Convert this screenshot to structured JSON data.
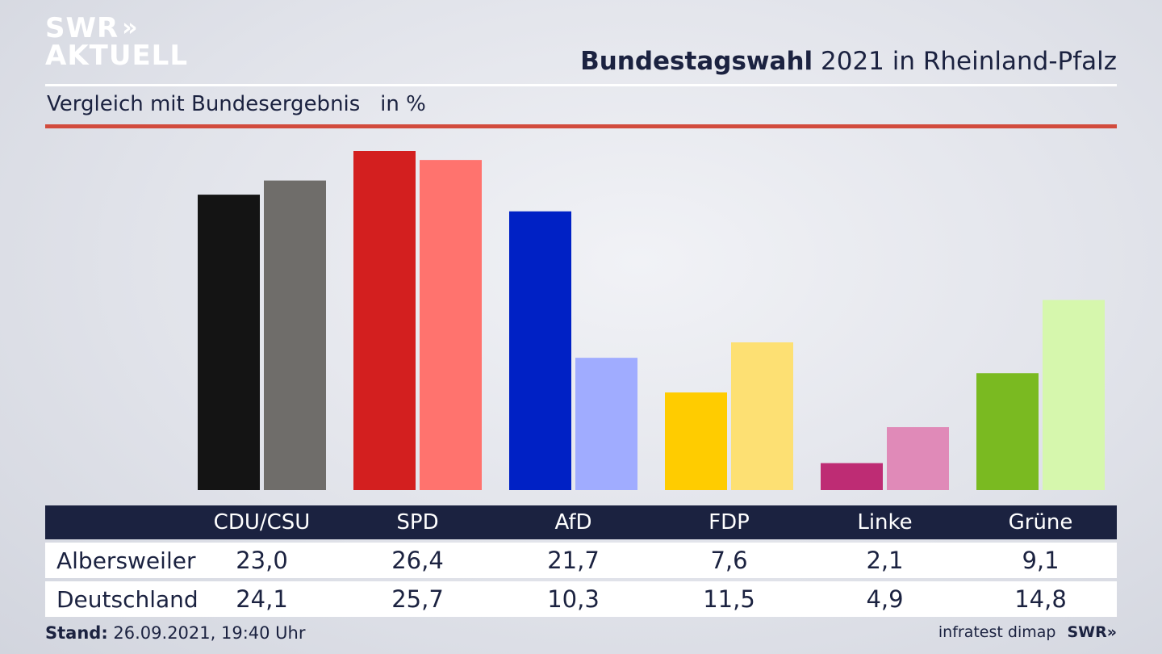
{
  "logo": {
    "line1": "SWR",
    "line2": "AKTUELL",
    "chevrons": "»"
  },
  "title": {
    "bold": "Bundestagswahl",
    "rest": " 2021 in Rheinland-Pfalz"
  },
  "subtitle": "Vergleich mit Bundesergebnis   in %",
  "chart_data": {
    "type": "bar",
    "categories": [
      "CDU/CSU",
      "SPD",
      "AfD",
      "FDP",
      "Linke",
      "Grüne"
    ],
    "series": [
      {
        "name": "Albersweiler",
        "values": [
          23.0,
          26.4,
          21.7,
          7.6,
          2.1,
          9.1
        ],
        "colors": [
          "#141414",
          "#d31f1f",
          "#0021c5",
          "#ffcc00",
          "#be2c74",
          "#7aba21"
        ]
      },
      {
        "name": "Deutschland",
        "values": [
          24.1,
          25.7,
          10.3,
          11.5,
          4.9,
          14.8
        ],
        "colors": [
          "#6f6d6a",
          "#ff736e",
          "#a0acff",
          "#fde073",
          "#e08ab8",
          "#d6f7ad"
        ]
      }
    ],
    "ylim": [
      0,
      26.4
    ],
    "grid": false
  },
  "table": {
    "headers": [
      "CDU/CSU",
      "SPD",
      "AfD",
      "FDP",
      "Linke",
      "Grüne"
    ],
    "rows": [
      {
        "label": "Albersweiler",
        "values": [
          "23,0",
          "26,4",
          "21,7",
          "7,6",
          "2,1",
          "9,1"
        ]
      },
      {
        "label": "Deutschland",
        "values": [
          "24,1",
          "25,7",
          "10,3",
          "11,5",
          "4,9",
          "14,8"
        ]
      }
    ]
  },
  "footer": {
    "stand_label": "Stand:",
    "stand_value": " 26.09.2021, 19:40 Uhr",
    "source": "infratest dimap",
    "brand": "SWR",
    "brand_chevrons": "»"
  }
}
